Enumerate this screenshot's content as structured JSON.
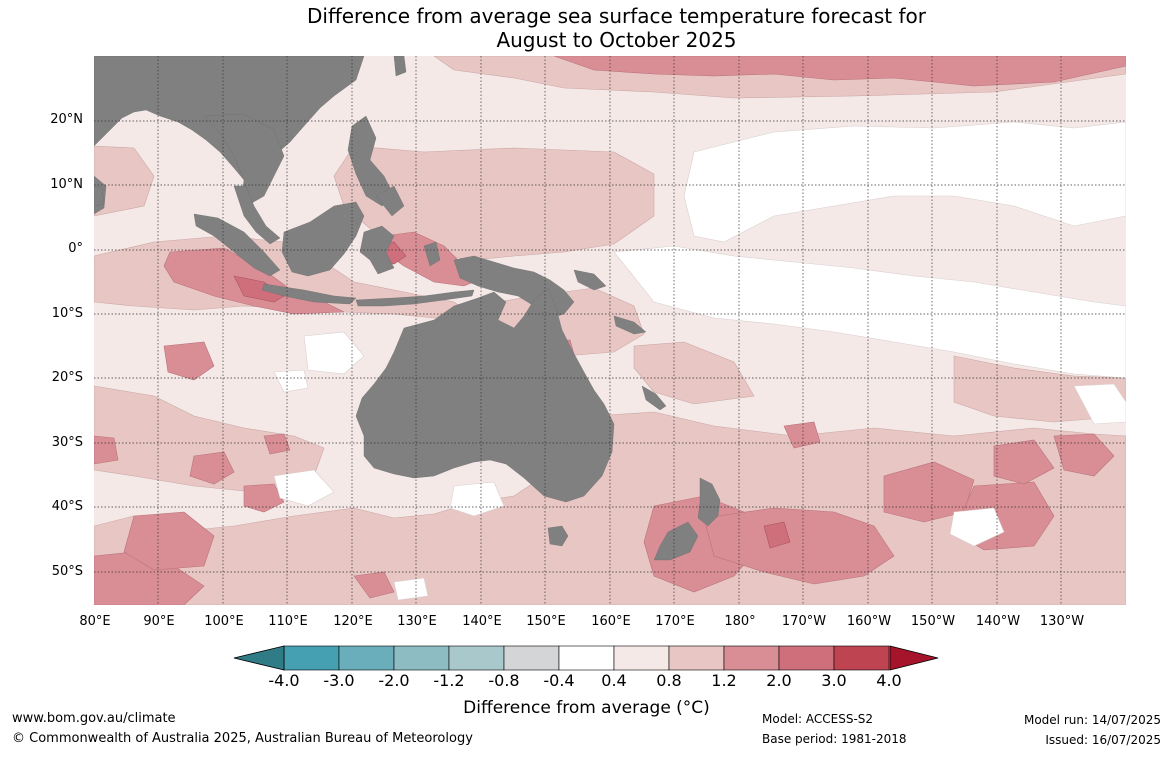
{
  "title": {
    "line1": "Difference from average sea surface temperature forecast for",
    "line2": "August to October 2025"
  },
  "lat_labels": [
    "20°N",
    "10°N",
    "0°",
    "10°S",
    "20°S",
    "30°S",
    "40°S",
    "50°S"
  ],
  "lon_labels": [
    "80°E",
    "90°E",
    "100°E",
    "110°E",
    "120°E",
    "130°E",
    "140°E",
    "150°E",
    "160°E",
    "170°E",
    "180°",
    "170°W",
    "160°W",
    "150°W",
    "140°W",
    "130°W"
  ],
  "colorbar": {
    "title": "Difference from average (°C)",
    "ticks": [
      "-4.0",
      "-3.0",
      "-2.0",
      "-1.2",
      "-0.8",
      "-0.4",
      "0.4",
      "0.8",
      "1.2",
      "2.0",
      "3.0",
      "4.0"
    ],
    "under_color": "#2f7c86",
    "over_color": "#a6142c",
    "colors": [
      "#45a0b2",
      "#6aaebc",
      "#8dbcc3",
      "#a9c8cb",
      "#d4d5d6",
      "#ffffff",
      "#f5e9e8",
      "#e8c6c3",
      "#d98e96",
      "#cf6f7c",
      "#be4452"
    ]
  },
  "palette": {
    "land": "#808080",
    "ocean_base": "#f5e9e8"
  },
  "footer": {
    "website": "www.bom.gov.au/climate",
    "copyright": "© Commonwealth of Australia 2025, Australian Bureau of Meteorology",
    "model": "Model: ACCESS-S2",
    "base_period": "Base period: 1981-2018",
    "model_run": "Model run: 14/07/2025",
    "issued": "Issued: 16/07/2025"
  }
}
